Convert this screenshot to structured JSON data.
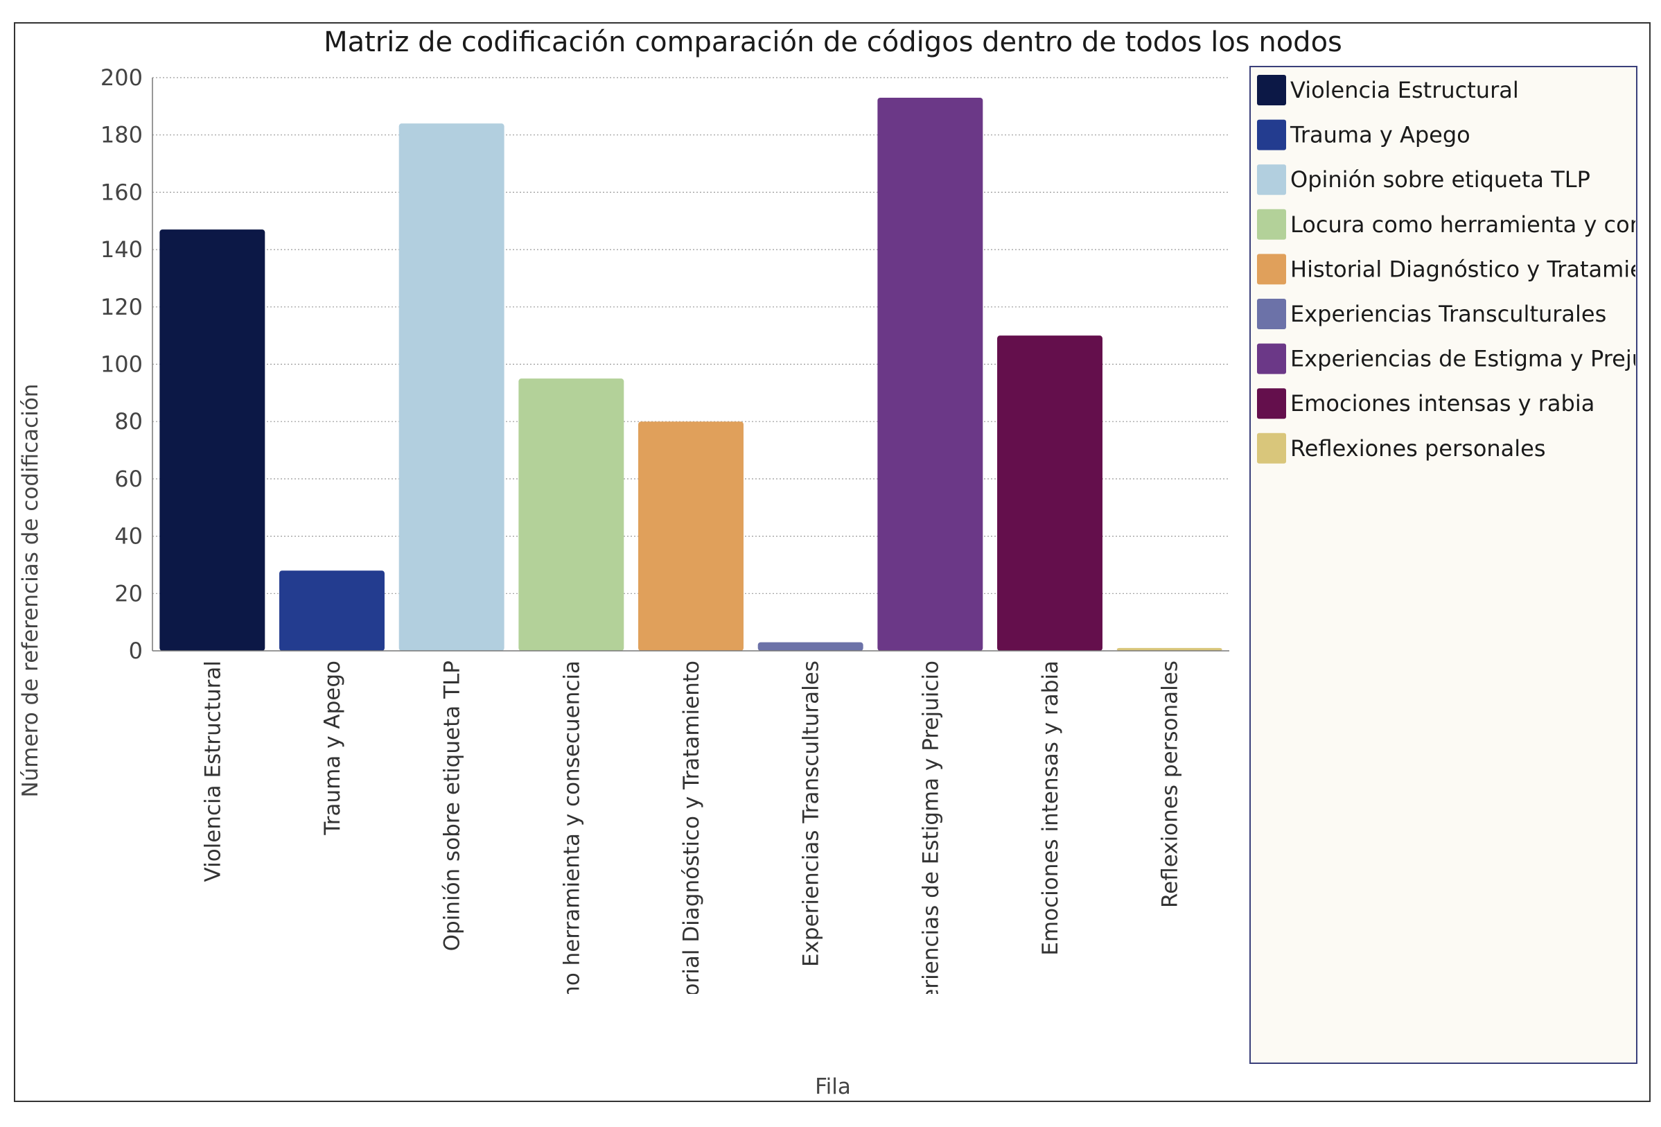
{
  "chart_data": {
    "type": "bar",
    "title": "Matriz de codificación comparación de códigos dentro de todos los nodos",
    "xlabel": "Fila",
    "ylabel": "Número de referencias de codificación",
    "ylim": [
      0,
      200
    ],
    "yticks": [
      0,
      20,
      40,
      60,
      80,
      100,
      120,
      140,
      160,
      180,
      200
    ],
    "grid": true,
    "legend_position": "right",
    "categories": [
      "Violencia Estructural",
      "Trauma y Apego",
      "Opinión sobre etiqueta TLP",
      "Locura como herramienta y consecuencia",
      "Historial Diagnóstico y Tratamiento",
      "Experiencias Transculturales",
      "Experiencias de Estigma y Prejuicio",
      "Emociones intensas y rabia",
      "Reflexiones personales"
    ],
    "values": [
      147,
      28,
      184,
      95,
      80,
      3,
      193,
      110,
      1
    ],
    "colors": [
      "#0c1846",
      "#233c8f",
      "#b2cfdf",
      "#b3d199",
      "#e0a05b",
      "#6c72a8",
      "#6b3887",
      "#640f4c",
      "#d9c67b"
    ]
  }
}
